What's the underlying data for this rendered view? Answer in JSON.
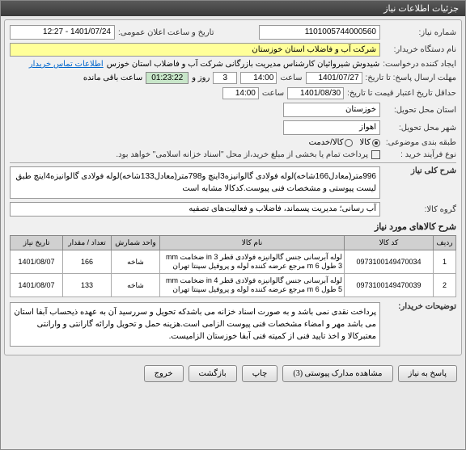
{
  "titlebar": "جزئیات اطلاعات نیاز",
  "fields": {
    "niaz_no_label": "شماره نیاز:",
    "niaz_no": "1101005744000560",
    "public_time_label": "تاریخ و ساعت اعلان عمومی:",
    "public_time": "1401/07/24 - 12:27",
    "buyer_label": "نام دستگاه خریدار:",
    "buyer": "شرکت آب و فاضلاب استان خوزستان",
    "creator_label": "ایجاد کننده درخواست:",
    "creator": "شیدوش شیرواثیان کارشناس مدیریت بازرگانی شرکت آب و فاضلاب استان خوزس",
    "contact_link": "اطلاعات تماس خریدار",
    "deadline_label": "مهلت ارسال پاسخ: تا تاریخ:",
    "deadline_date": "1401/07/27",
    "deadline_hour_label": "ساعت",
    "deadline_hour": "14:00",
    "remaining_days": "3",
    "remaining_days_label": "روز و",
    "remaining_time": "01:23:22",
    "remaining_label": "ساعت باقی مانده",
    "validity_label": "حداقل تاریخ اعتبار قیمت تا تاریخ:",
    "validity_date": "1401/08/30",
    "validity_hour": "14:00",
    "province_label": "استان محل تحویل:",
    "province": "خوزستان",
    "city_label": "شهر محل تحویل:",
    "city": "اهواز",
    "category_label": "طبقه بندی موضوعی:",
    "cat_kala": "● کالا",
    "cat_service": "○ کالا/خدمت",
    "process_label": "نوع فرآیند خرید :",
    "process_note": "پرداخت تمام یا بخشی از مبلغ خرید،از محل \"اسناد خزانه اسلامی\" خواهد بود.",
    "desc_label": "شرح کلی نیاز",
    "desc_text": "996متر(معادل166شاخه)لوله فولادی گالوانیزه3اینچ و798متر(معادل133شاخه)لوله فولادی گالوانیزه4اینچ طبق لیست پیوستی و مشخصات فنی پیوست.کدکالا مشابه است",
    "group_label": "گروه‌ کالا:",
    "group_text": "آب رسانی؛ مدیریت پسماند، فاضلاب و فعالیت‌های تصفیه",
    "items_title": "شرح کالاهای مورد نیاز",
    "notes_label": "توضیحات خریدار:",
    "notes_text": "پرداخت نقدی نمی باشد و به صورت اسناد خزانه می باشدکه تحویل و سررسید آن به عهده ذیحساب آبفا استان می باشد مهر و امضاء مشخصات فنی پیوست الزامی است.هزینه حمل و تحویل وارائه گارانتی و وارانتی معتبرکالا و اخذ تایید فنی از کمیته فنی آبفا خوزستان الزامیست."
  },
  "table": {
    "headers": [
      "ردیف",
      "کد کالا",
      "نام کالا",
      "واحد شمارش",
      "تعداد / مقدار",
      "تاریخ نیاز"
    ],
    "rows": [
      [
        "1",
        "0973100149470034",
        "لوله آبرسانی جنس گالوانیزه فولادی قطر 3 in ضخامت mm 3 طول m 6 مرجع عرضه کننده لوله و پروفیل سپنتا تهران",
        "شاخه",
        "166",
        "1401/08/07"
      ],
      [
        "2",
        "0973100149470039",
        "لوله آبرسانی جنس گالوانیزه فولادی قطر 4 in ضخامت mm 5 طول m 6 مرجع عرضه کننده لوله و پروفیل سپنتا تهران",
        "شاخه",
        "133",
        "1401/08/07"
      ]
    ]
  },
  "buttons": {
    "respond": "پاسخ به نیاز",
    "attachments": "مشاهده مدارک پیوستی (3)",
    "print": "چاپ",
    "back": "بازگشت",
    "exit": "خروج"
  }
}
